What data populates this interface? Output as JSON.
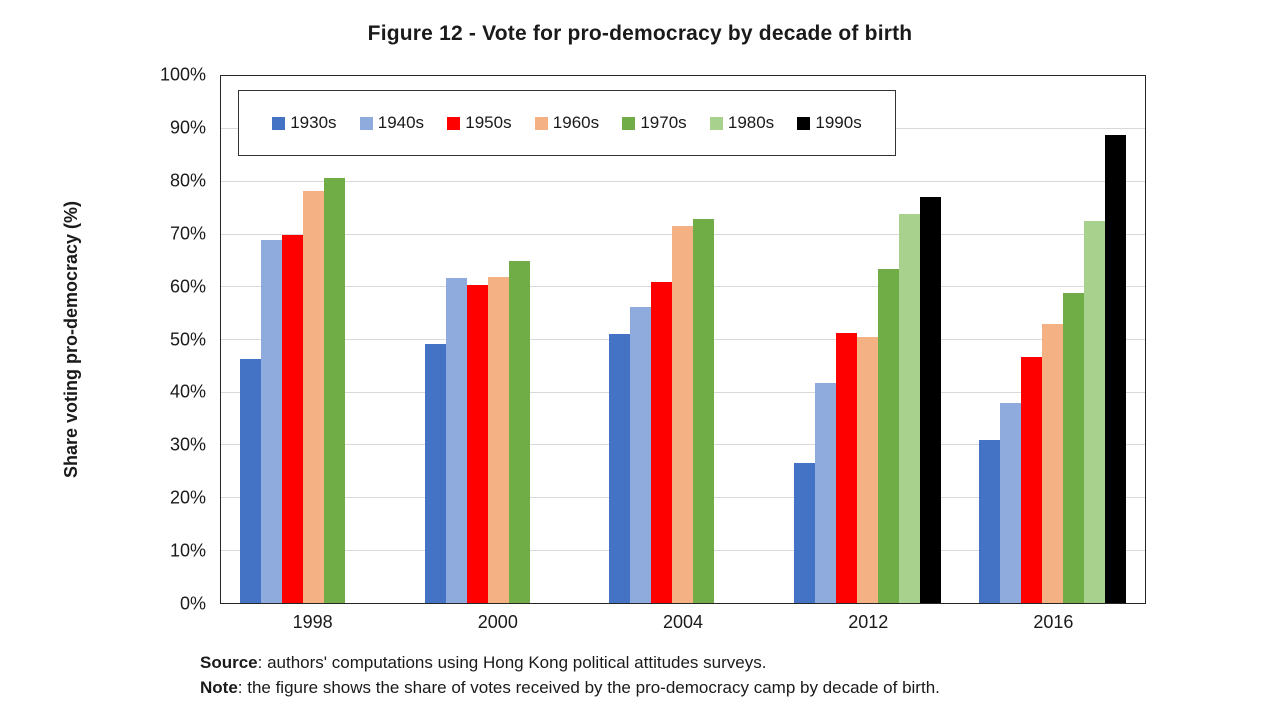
{
  "title": "Figure 12 - Vote for pro-democracy by decade of birth",
  "chart_data": {
    "type": "bar",
    "title": "Figure 12 - Vote for pro-democracy by decade of birth",
    "categories": [
      "1998",
      "2000",
      "2004",
      "2012",
      "2016"
    ],
    "series": [
      {
        "name": "1930s",
        "color": "#4472C4",
        "values": [
          46.3,
          49.2,
          51.0,
          26.5,
          31.0
        ]
      },
      {
        "name": "1940s",
        "color": "#8FAADC",
        "values": [
          68.9,
          61.7,
          56.2,
          41.8,
          38.0
        ]
      },
      {
        "name": "1950s",
        "color": "#FF0000",
        "values": [
          69.8,
          60.4,
          60.9,
          51.3,
          46.7
        ]
      },
      {
        "name": "1960s",
        "color": "#F4B183",
        "values": [
          78.2,
          61.9,
          71.6,
          50.4,
          52.9
        ]
      },
      {
        "name": "1970s",
        "color": "#70AD47",
        "values": [
          80.7,
          64.9,
          72.8,
          63.3,
          58.8
        ]
      },
      {
        "name": "1980s",
        "color": "#A9D18E",
        "values": [
          null,
          null,
          null,
          73.8,
          72.4
        ]
      },
      {
        "name": "1990s",
        "color": "#000000",
        "values": [
          null,
          null,
          null,
          77.0,
          88.8
        ]
      }
    ],
    "xlabel": "",
    "ylabel": "Share voting pro-democracy (%)",
    "ylim": [
      0,
      100
    ],
    "ytick_step": 10,
    "ytick_suffix": "%",
    "grid": true,
    "legend_position": "top-left-inside",
    "gridline_color": "#D9D9D9",
    "axis_border_color": "#262626"
  },
  "footer": {
    "source_label": "Source",
    "source_text": ": authors' computations using Hong Kong political attitudes surveys.",
    "note_label": "Note",
    "note_text": ": the figure shows the share of votes received by the pro-democracy camp by decade of birth."
  }
}
